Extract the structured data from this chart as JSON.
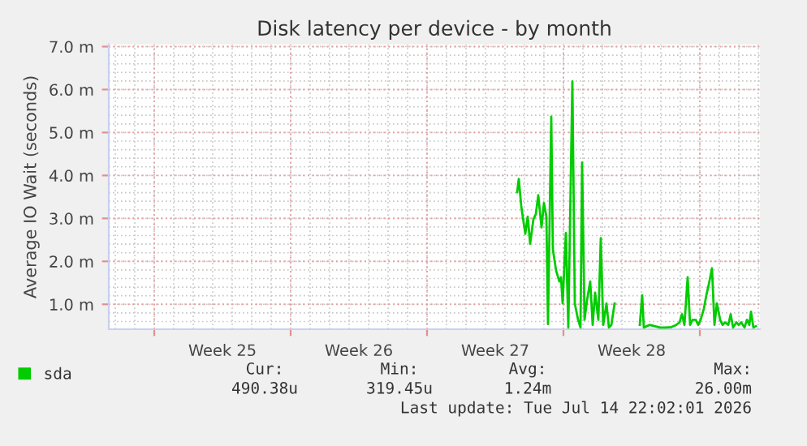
{
  "chart_data": {
    "type": "line",
    "title": "Disk latency per device - by month",
    "ylabel": "Average IO Wait (seconds)",
    "x": [
      "2026-07-03T15:00",
      "2026-07-03T17:00",
      "2026-07-03T20:00",
      "2026-07-04T01:00",
      "2026-07-04T04:00",
      "2026-07-04T07:00",
      "2026-07-04T11:00",
      "2026-07-04T14:00",
      "2026-07-04T17:00",
      "2026-07-04T21:00",
      "2026-07-05T00:00",
      "2026-07-05T03:00",
      "2026-07-05T05:00",
      "2026-07-05T09:00",
      "2026-07-05T11:00",
      "2026-07-05T15:00",
      "2026-07-05T19:00",
      "2026-07-05T21:00",
      "2026-07-05T23:00",
      "2026-07-06T03:00",
      "2026-07-06T06:00",
      "2026-07-06T11:00",
      "2026-07-06T14:00",
      "2026-07-06T18:00",
      "2026-07-06T21:00",
      "2026-07-06T23:00",
      "2026-07-07T02:00",
      "2026-07-07T05:00",
      "2026-07-07T09:00",
      "2026-07-07T12:00",
      "2026-07-07T15:00",
      "2026-07-07T19:00",
      "2026-07-07T22:00",
      "2026-07-08T01:00",
      "2026-07-08T05:00",
      "2026-07-08T08:00",
      "2026-07-08T11:00",
      "2026-07-08T15:00",
      "2026-07-08T22:00",
      "2026-07-09T22:00",
      "2026-07-10T01:00",
      "2026-07-10T03:00",
      "2026-07-10T10:00",
      "2026-07-10T17:00",
      "2026-07-10T23:00",
      "2026-07-11T06:00",
      "2026-07-11T13:00",
      "2026-07-11T19:00",
      "2026-07-11T23:00",
      "2026-07-12T02:00",
      "2026-07-12T05:00",
      "2026-07-12T09:00",
      "2026-07-12T12:00",
      "2026-07-12T15:00",
      "2026-07-12T19:00",
      "2026-07-12T22:00",
      "2026-07-13T01:00",
      "2026-07-13T05:00",
      "2026-07-13T08:00",
      "2026-07-13T11:00",
      "2026-07-13T15:00",
      "2026-07-13T18:00",
      "2026-07-13T21:00",
      "2026-07-14T01:00",
      "2026-07-14T04:00",
      "2026-07-14T07:00",
      "2026-07-14T11:00",
      "2026-07-14T14:00",
      "2026-07-14T17:00",
      "2026-07-14T21:00",
      "2026-07-15T00:00",
      "2026-07-15T03:00",
      "2026-07-15T07:00",
      "2026-07-15T10:00",
      "2026-07-15T13:00",
      "2026-07-15T15:00",
      "2026-07-15T18:00",
      "2026-07-15T21:00"
    ],
    "series": [
      {
        "name": "sda",
        "color": "#00cc00",
        "values": [
          3.61,
          3.92,
          3.29,
          2.64,
          3.04,
          2.41,
          2.98,
          3.1,
          3.54,
          2.79,
          3.36,
          3.04,
          0.54,
          5.37,
          2.28,
          1.78,
          1.53,
          1.63,
          1.02,
          2.66,
          0.46,
          6.19,
          1.02,
          0.64,
          0.46,
          4.3,
          0.64,
          1.09,
          1.53,
          0.52,
          1.27,
          0.64,
          2.54,
          0.52,
          1.02,
          0.46,
          0.52,
          1.02,
          null,
          0.52,
          1.21,
          0.46,
          0.52,
          0.49,
          0.46,
          0.46,
          0.47,
          0.52,
          0.58,
          0.77,
          0.52,
          1.63,
          0.52,
          0.64,
          0.64,
          0.52,
          0.64,
          0.9,
          1.21,
          1.46,
          1.84,
          0.52,
          1.02,
          0.64,
          0.52,
          0.58,
          0.52,
          0.77,
          0.46,
          0.58,
          0.52,
          0.58,
          0.46,
          0.64,
          0.52,
          0.83,
          0.46,
          0.49
        ]
      }
    ],
    "xlim": [
      "2026-06-12T16:00",
      "2026-07-16T02:00"
    ],
    "xticks": [
      {
        "value": "2026-06-15",
        "label": null
      },
      {
        "value": "2026-06-18T12:00",
        "label": "Week 25"
      },
      {
        "value": "2026-06-22",
        "label": null
      },
      {
        "value": "2026-06-25T12:00",
        "label": "Week 26"
      },
      {
        "value": "2026-06-29",
        "label": null
      },
      {
        "value": "2026-07-02T12:00",
        "label": "Week 27"
      },
      {
        "value": "2026-07-06",
        "label": null
      },
      {
        "value": "2026-07-09T12:00",
        "label": "Week 28"
      },
      {
        "value": "2026-07-13",
        "label": null
      }
    ],
    "ylim": [
      0.42,
      7.05
    ],
    "yticks": [
      {
        "value": 1.0,
        "label": "1.0 m"
      },
      {
        "value": 2.0,
        "label": "2.0 m"
      },
      {
        "value": 3.0,
        "label": "3.0 m"
      },
      {
        "value": 4.0,
        "label": "4.0 m"
      },
      {
        "value": 5.0,
        "label": "5.0 m"
      },
      {
        "value": 6.0,
        "label": "6.0 m"
      },
      {
        "value": 7.0,
        "label": "7.0 m"
      }
    ],
    "grid": true,
    "legend": "bottom left",
    "marker": "none",
    "line_style": "solid",
    "annotations": [
      "Cur:",
      "490.38u",
      "Min:",
      "319.45u",
      "Avg:",
      "1.24m",
      "Max:",
      "26.00m",
      "Last update: Tue Jul 14 22:02:01 2026"
    ]
  }
}
